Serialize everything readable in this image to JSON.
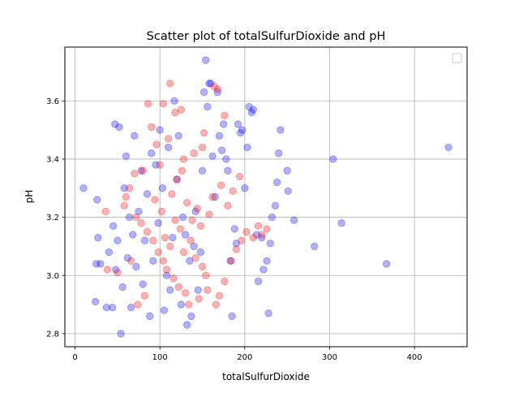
{
  "chart_data": {
    "type": "scatter",
    "title": "Scatter plot of totalSulfurDioxide and pH",
    "xlabel": "totalSulfurDioxide",
    "ylabel": "pH",
    "xlim": [
      -12,
      462
    ],
    "ylim": [
      2.755,
      3.785
    ],
    "xticks": [
      0,
      100,
      200,
      300,
      400
    ],
    "yticks": [
      2.8,
      3.0,
      3.2,
      3.4,
      3.6
    ],
    "grid": true,
    "legend": "top-right",
    "series": [
      {
        "color": "#0000ff",
        "alpha": 0.3,
        "points": [
          [
            440,
            3.44
          ],
          [
            367,
            3.04
          ],
          [
            314,
            3.18
          ],
          [
            304,
            3.4
          ],
          [
            282,
            3.1
          ],
          [
            258,
            3.19
          ],
          [
            251,
            3.29
          ],
          [
            250,
            3.36
          ],
          [
            242,
            3.5
          ],
          [
            240,
            3.42
          ],
          [
            238,
            3.32
          ],
          [
            236,
            3.24
          ],
          [
            232,
            3.2
          ],
          [
            230,
            3.11
          ],
          [
            228,
            2.87
          ],
          [
            226,
            3.05
          ],
          [
            222,
            3.02
          ],
          [
            220,
            3.13
          ],
          [
            216,
            2.98
          ],
          [
            214,
            3.14
          ],
          [
            210,
            3.57
          ],
          [
            208,
            3.56
          ],
          [
            205,
            3.58
          ],
          [
            203,
            3.44
          ],
          [
            200,
            3.3
          ],
          [
            197,
            3.5
          ],
          [
            195,
            3.49
          ],
          [
            192,
            3.52
          ],
          [
            190,
            3.11
          ],
          [
            188,
            3.16
          ],
          [
            185,
            2.86
          ],
          [
            183,
            3.05
          ],
          [
            180,
            3.36
          ],
          [
            178,
            3.4
          ],
          [
            175,
            3.52
          ],
          [
            173,
            3.43
          ],
          [
            170,
            3.48
          ],
          [
            168,
            3.63
          ],
          [
            165,
            3.27
          ],
          [
            162,
            3.41
          ],
          [
            160,
            3.66
          ],
          [
            158,
            3.66
          ],
          [
            156,
            3.58
          ],
          [
            154,
            3.74
          ],
          [
            152,
            3.63
          ],
          [
            150,
            3.36
          ],
          [
            148,
            3.08
          ],
          [
            145,
            2.95
          ],
          [
            142,
            3.22
          ],
          [
            140,
            3.1
          ],
          [
            137,
            2.86
          ],
          [
            135,
            3.05
          ],
          [
            132,
            2.83
          ],
          [
            130,
            3.14
          ],
          [
            127,
            3.2
          ],
          [
            125,
            2.9
          ],
          [
            122,
            3.48
          ],
          [
            120,
            3.33
          ],
          [
            117,
            3.6
          ],
          [
            115,
            3.13
          ],
          [
            112,
            2.95
          ],
          [
            110,
            3.44
          ],
          [
            108,
            3.0
          ],
          [
            105,
            2.88
          ],
          [
            103,
            3.3
          ],
          [
            100,
            3.5
          ],
          [
            98,
            3.18
          ],
          [
            95,
            3.38
          ],
          [
            92,
            3.05
          ],
          [
            90,
            3.42
          ],
          [
            88,
            2.86
          ],
          [
            85,
            3.28
          ],
          [
            82,
            3.12
          ],
          [
            80,
            2.97
          ],
          [
            78,
            3.36
          ],
          [
            75,
            3.22
          ],
          [
            72,
            3.03
          ],
          [
            70,
            3.48
          ],
          [
            68,
            3.14
          ],
          [
            66,
            2.89
          ],
          [
            64,
            3.2
          ],
          [
            62,
            3.06
          ],
          [
            60,
            3.41
          ],
          [
            58,
            3.3
          ],
          [
            56,
            2.96
          ],
          [
            54,
            2.8
          ],
          [
            52,
            3.51
          ],
          [
            50,
            3.12
          ],
          [
            47,
            3.52
          ],
          [
            44,
            2.89
          ],
          [
            40,
            3.08
          ],
          [
            37,
            2.89
          ],
          [
            30,
            3.04
          ],
          [
            27,
            3.13
          ],
          [
            26,
            3.26
          ],
          [
            25,
            3.04
          ],
          [
            24,
            2.91
          ],
          [
            10,
            3.3
          ],
          [
            45,
            3.17
          ],
          [
            48,
            3.02
          ]
        ]
      },
      {
        "color": "#ff0000",
        "alpha": 0.3,
        "points": [
          [
            168,
            3.64
          ],
          [
            164,
            3.65
          ],
          [
            112,
            3.66
          ],
          [
            104,
            3.59
          ],
          [
            86,
            3.59
          ],
          [
            125,
            3.57
          ],
          [
            176,
            3.55
          ],
          [
            118,
            3.56
          ],
          [
            90,
            3.51
          ],
          [
            96,
            3.45
          ],
          [
            110,
            3.47
          ],
          [
            140,
            3.42
          ],
          [
            150,
            3.44
          ],
          [
            152,
            3.49
          ],
          [
            128,
            3.4
          ],
          [
            100,
            3.38
          ],
          [
            80,
            3.36
          ],
          [
            70,
            3.35
          ],
          [
            64,
            3.3
          ],
          [
            60,
            3.27
          ],
          [
            58,
            3.24
          ],
          [
            72,
            3.2
          ],
          [
            78,
            3.18
          ],
          [
            85,
            3.15
          ],
          [
            92,
            3.12
          ],
          [
            98,
            3.08
          ],
          [
            104,
            3.05
          ],
          [
            108,
            3.02
          ],
          [
            116,
            2.99
          ],
          [
            122,
            2.96
          ],
          [
            130,
            2.94
          ],
          [
            134,
            2.9
          ],
          [
            146,
            2.92
          ],
          [
            156,
            2.95
          ],
          [
            166,
            2.9
          ],
          [
            170,
            2.93
          ],
          [
            176,
            2.98
          ],
          [
            184,
            3.05
          ],
          [
            190,
            3.09
          ],
          [
            196,
            3.12
          ],
          [
            202,
            3.15
          ],
          [
            210,
            3.13
          ],
          [
            216,
            3.17
          ],
          [
            220,
            3.14
          ],
          [
            226,
            3.16
          ],
          [
            36,
            3.22
          ],
          [
            38,
            3.02
          ],
          [
            50,
            3.01
          ],
          [
            66,
            3.05
          ],
          [
            74,
            2.9
          ],
          [
            82,
            2.93
          ],
          [
            94,
            3.26
          ],
          [
            102,
            3.22
          ],
          [
            114,
            3.28
          ],
          [
            120,
            3.33
          ],
          [
            126,
            3.36
          ],
          [
            132,
            3.25
          ],
          [
            138,
            3.19
          ],
          [
            144,
            3.23
          ],
          [
            148,
            3.17
          ],
          [
            158,
            3.21
          ],
          [
            162,
            3.27
          ],
          [
            172,
            3.31
          ],
          [
            180,
            3.24
          ],
          [
            186,
            3.29
          ],
          [
            194,
            3.34
          ],
          [
            106,
            3.13
          ],
          [
            112,
            3.1
          ],
          [
            118,
            3.19
          ],
          [
            124,
            3.16
          ],
          [
            128,
            3.08
          ],
          [
            136,
            3.12
          ],
          [
            142,
            3.06
          ],
          [
            150,
            3.03
          ],
          [
            154,
            3.0
          ]
        ]
      }
    ]
  }
}
